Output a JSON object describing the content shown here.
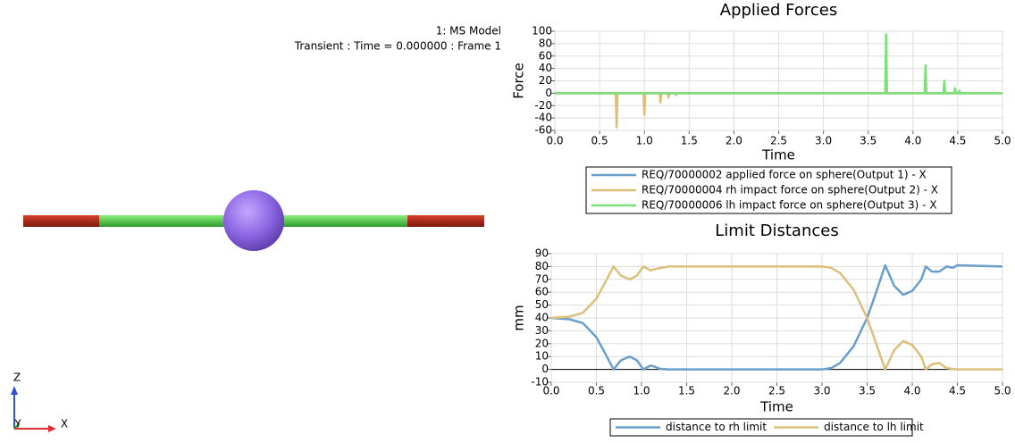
{
  "viewport": {
    "model": "1: MS Model",
    "status": "Transient : Time = 0.000000 : Frame 1",
    "axes": {
      "z": "Z",
      "y": "Y",
      "x": "X"
    }
  },
  "chart_data": [
    {
      "type": "line",
      "title": "Applied Forces",
      "x_label": "Time",
      "y_label": "Force",
      "xlim": [
        0,
        5
      ],
      "xticks": [
        {
          "value": 0,
          "label": "0.0"
        },
        0.5,
        {
          "value": 1,
          "label": "1.0"
        },
        1.5,
        {
          "value": 2,
          "label": "2.0"
        },
        2.5,
        {
          "value": 3,
          "label": "3.0"
        },
        3.5,
        {
          "value": 4,
          "label": "4.0"
        },
        4.5,
        {
          "value": 5,
          "label": "5.0"
        }
      ],
      "ylim": [
        -60,
        100
      ],
      "yticks": [
        -60,
        -40,
        -20,
        0,
        20,
        40,
        60,
        80,
        100
      ],
      "grid": true,
      "legend": "below",
      "series": [
        {
          "name": "REQ/70000002 applied force on sphere(Output 1) - X",
          "color": "#6a9fcb",
          "x": [
            0,
            5
          ],
          "values": [
            0,
            0
          ]
        },
        {
          "name": "REQ/70000004 rh impact force on sphere(Output 2) - X",
          "color": "#dcc07a",
          "x": [
            0,
            0.68,
            0.69,
            0.7,
            0.99,
            1.0,
            1.01,
            1.17,
            1.18,
            1.19,
            1.26,
            1.27,
            1.28,
            1.34,
            1.35,
            1.36,
            5
          ],
          "values": [
            0,
            0,
            -55,
            0,
            0,
            -35,
            0,
            0,
            -15,
            0,
            0,
            -7,
            0,
            0,
            -3,
            0,
            0
          ]
        },
        {
          "name": "REQ/70000006 lh impact force on sphere(Output 3) - X",
          "color": "#7ee07a",
          "x": [
            0,
            3.69,
            3.7,
            3.71,
            4.13,
            4.14,
            4.15,
            4.34,
            4.35,
            4.36,
            4.46,
            4.47,
            4.48,
            4.51,
            4.52,
            4.53,
            5
          ],
          "values": [
            0,
            0,
            95,
            0,
            0,
            45,
            0,
            0,
            20,
            0,
            0,
            8,
            0,
            0,
            4,
            0,
            0
          ]
        }
      ]
    },
    {
      "type": "line",
      "title": "Limit Distances",
      "x_label": "Time",
      "y_label": "mm",
      "xlim": [
        0,
        5
      ],
      "xticks": [
        {
          "value": 0,
          "label": "0.0"
        },
        0.5,
        {
          "value": 1,
          "label": "1.0"
        },
        1.5,
        {
          "value": 2,
          "label": "2.0"
        },
        2.5,
        {
          "value": 3,
          "label": "3.0"
        },
        3.5,
        {
          "value": 4,
          "label": "4.0"
        },
        4.5,
        {
          "value": 5,
          "label": "5.0"
        }
      ],
      "ylim": [
        -10,
        90
      ],
      "yticks": [
        -10,
        0,
        10,
        20,
        30,
        40,
        50,
        60,
        70,
        80,
        90
      ],
      "grid": true,
      "legend": "below",
      "series": [
        {
          "name": "distance to rh limit",
          "color": "#6a9fcb",
          "x": [
            0,
            0.2,
            0.35,
            0.5,
            0.6,
            0.69,
            0.77,
            0.87,
            0.95,
            1.02,
            1.1,
            1.15,
            1.2,
            1.3,
            3.0,
            3.1,
            3.2,
            3.35,
            3.5,
            3.6,
            3.7,
            3.8,
            3.9,
            4.0,
            4.1,
            4.15,
            4.22,
            4.3,
            4.38,
            4.45,
            4.5,
            5
          ],
          "values": [
            40,
            39,
            36,
            25,
            12,
            0,
            7,
            10,
            7,
            0,
            3,
            2,
            0.5,
            0,
            0,
            1,
            5,
            18,
            40,
            60,
            81,
            65,
            58,
            61,
            70,
            80,
            76,
            76,
            80,
            79,
            81,
            80
          ]
        },
        {
          "name": "distance to lh limit",
          "color": "#dcc07a",
          "x": [
            0,
            0.2,
            0.35,
            0.5,
            0.6,
            0.69,
            0.77,
            0.87,
            0.95,
            1.02,
            1.1,
            1.15,
            1.3,
            3.0,
            3.1,
            3.2,
            3.35,
            3.5,
            3.6,
            3.7,
            3.8,
            3.9,
            4.0,
            4.1,
            4.15,
            4.22,
            4.3,
            4.38,
            4.5,
            5
          ],
          "values": [
            40,
            41,
            44,
            55,
            68,
            80,
            73,
            70,
            73,
            80,
            77,
            78,
            80,
            80,
            79,
            75,
            62,
            40,
            20,
            0,
            15,
            22,
            19,
            10,
            0,
            4,
            5,
            1,
            0,
            0
          ]
        }
      ]
    }
  ]
}
